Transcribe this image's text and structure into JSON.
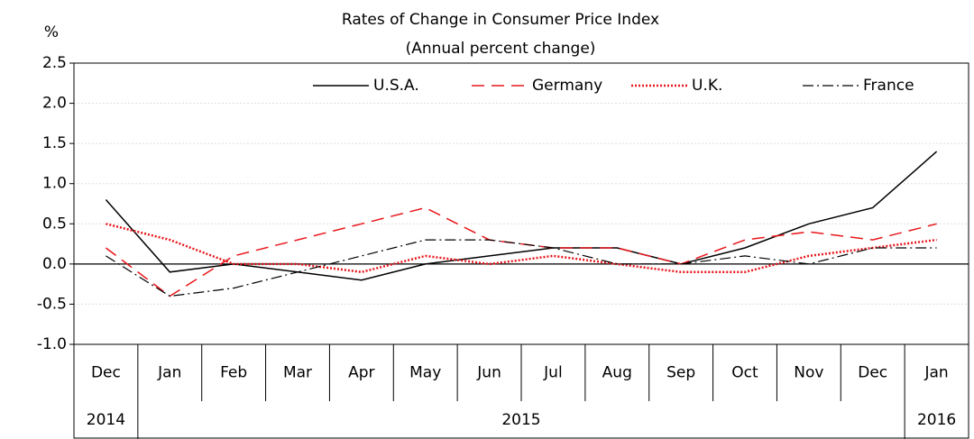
{
  "chart_data": {
    "type": "line",
    "title": "Rates of Change in Consumer Price Index",
    "subtitle": "(Annual percent change)",
    "y_unit": "%",
    "categories": [
      "Dec",
      "Jan",
      "Feb",
      "Mar",
      "Apr",
      "May",
      "Jun",
      "Jul",
      "Aug",
      "Sep",
      "Oct",
      "Nov",
      "Dec",
      "Jan"
    ],
    "category_groups": [
      {
        "label": "2014",
        "count": 1
      },
      {
        "label": "2015",
        "count": 12
      },
      {
        "label": "2016",
        "count": 1
      }
    ],
    "ylim": [
      -1.0,
      2.5
    ],
    "yticks": [
      {
        "value": -1.0,
        "label": "-1.0"
      },
      -0.5,
      {
        "value": 0.0,
        "label": "0.0"
      },
      0.5,
      {
        "value": 1.0,
        "label": "1.0"
      },
      1.5,
      {
        "value": 2.0,
        "label": "2.0"
      },
      2.5
    ],
    "grid": true,
    "series": [
      {
        "name": "U.S.A.",
        "color": "#000000",
        "dash": "solid",
        "values": [
          0.8,
          -0.1,
          0.0,
          -0.1,
          -0.2,
          0.0,
          0.1,
          0.2,
          0.2,
          0.0,
          0.2,
          0.5,
          0.7,
          1.4
        ]
      },
      {
        "name": "Germany",
        "color": "#e8161b",
        "dash": "dashed",
        "values": [
          0.2,
          -0.4,
          0.1,
          0.3,
          0.5,
          0.7,
          0.3,
          0.2,
          0.2,
          0.0,
          0.3,
          0.4,
          0.3,
          0.5
        ]
      },
      {
        "name": "U.K.",
        "color": "#e8161b",
        "dash": "dotted",
        "values": [
          0.5,
          0.3,
          0.0,
          0.0,
          -0.1,
          0.1,
          0.0,
          0.1,
          0.0,
          -0.1,
          -0.1,
          0.1,
          0.2,
          0.3
        ]
      },
      {
        "name": "France",
        "color": "#000000",
        "dash": "dashdot",
        "values": [
          0.1,
          -0.4,
          -0.3,
          -0.1,
          0.1,
          0.3,
          0.3,
          0.2,
          0.0,
          0.0,
          0.1,
          0.0,
          0.2,
          0.2
        ]
      }
    ]
  }
}
